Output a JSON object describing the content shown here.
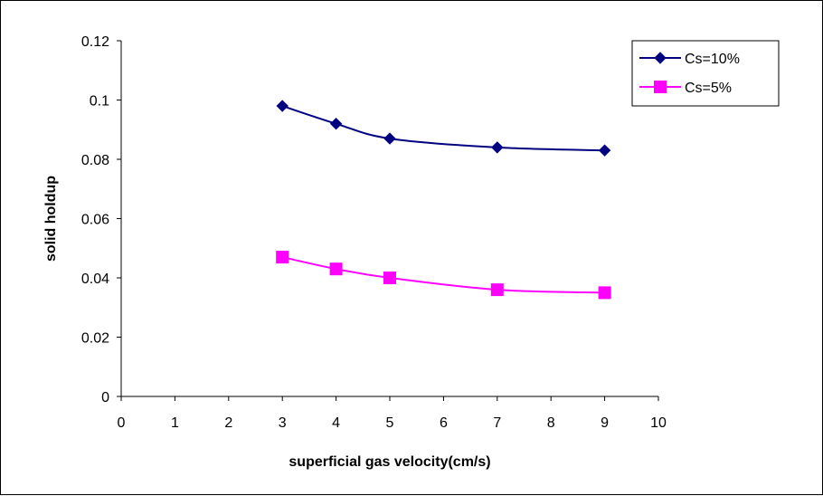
{
  "chart_data": {
    "type": "line",
    "title": "",
    "xlabel": "superficial gas velocity(cm/s)",
    "ylabel": "solid holdup",
    "xlim": [
      0,
      10
    ],
    "ylim": [
      0,
      0.12
    ],
    "x_ticks": [
      "0",
      "1",
      "2",
      "3",
      "4",
      "5",
      "6",
      "7",
      "8",
      "9",
      "10"
    ],
    "y_ticks": [
      "0",
      "0.02",
      "0.04",
      "0.06",
      "0.08",
      "0.1",
      "0.12"
    ],
    "grid": false,
    "smooth": true,
    "legend": {
      "position": "top-right"
    },
    "series": [
      {
        "name": "Cs=10%",
        "color": "#000080",
        "marker": "diamond",
        "x": [
          3,
          4,
          5,
          7,
          9
        ],
        "y": [
          0.098,
          0.092,
          0.087,
          0.084,
          0.083
        ]
      },
      {
        "name": "Cs=5%",
        "color": "#FF00FF",
        "marker": "square",
        "x": [
          3,
          4,
          5,
          7,
          9
        ],
        "y": [
          0.047,
          0.043,
          0.04,
          0.036,
          0.035
        ]
      }
    ]
  }
}
